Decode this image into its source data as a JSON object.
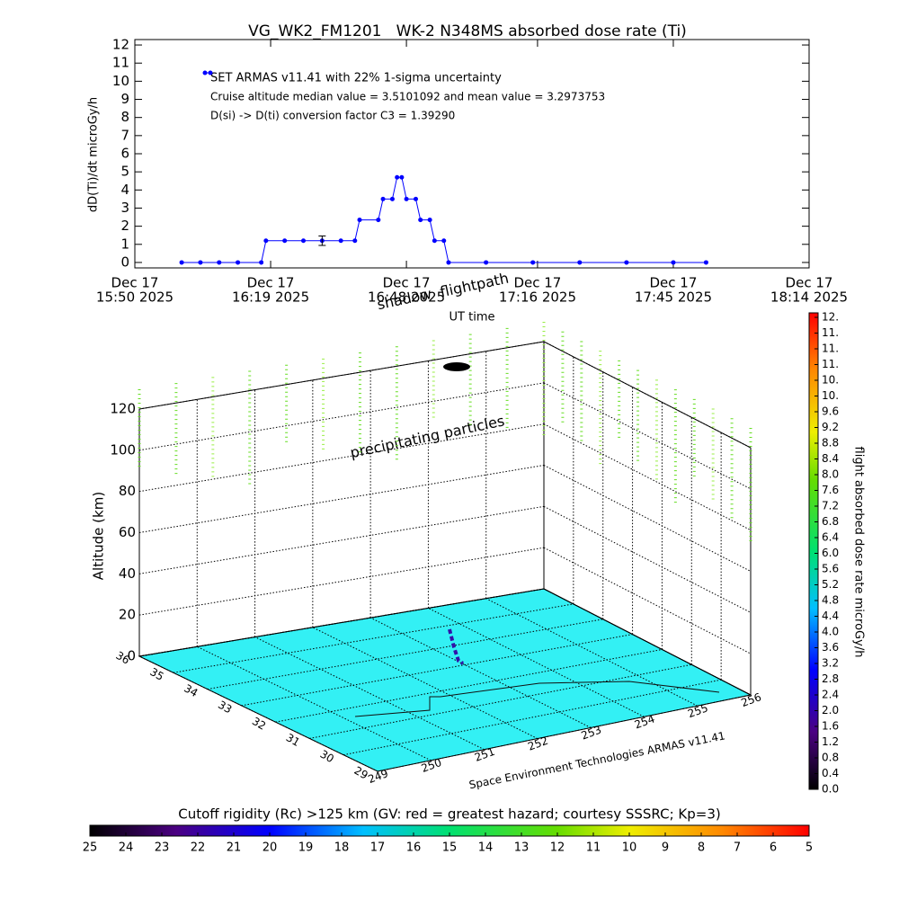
{
  "chart_data": [
    {
      "type": "line",
      "title": "VG_WK2_FM1201   WK-2 N348MS absorbed dose rate (Ti)",
      "ylabel": "dD(Ti)/dt microGy/h",
      "xlabel": "UT time",
      "annotations": [
        "SET ARMAS v11.41 with 22% 1-sigma uncertainty",
        "Cruise altitude median value = 3.5101092 and mean value = 3.2973753",
        "D(si) -> D(ti) conversion factor C3 = 1.39290"
      ],
      "xlim": [
        "15:50",
        "18:14"
      ],
      "xticks": [
        {
          "value": "15:50",
          "label": [
            "Dec 17",
            "15:50 2025"
          ]
        },
        {
          "value": "16:19",
          "label": [
            "Dec 17",
            "16:19 2025"
          ]
        },
        {
          "value": "16:48",
          "label": [
            "Dec 17",
            "16:48 2025"
          ]
        },
        {
          "value": "17:16",
          "label": [
            "Dec 17",
            "17:16 2025"
          ]
        },
        {
          "value": "17:45",
          "label": [
            "Dec 17",
            "17:45 2025"
          ]
        },
        {
          "value": "18:14",
          "label": [
            "Dec 17",
            "18:14 2025"
          ]
        }
      ],
      "ylim": [
        -0.3,
        12.3
      ],
      "yticks": [
        0,
        1,
        2,
        3,
        4,
        5,
        6,
        7,
        8,
        9,
        10,
        11,
        12
      ],
      "x": [
        "16:00",
        "16:04",
        "16:08",
        "16:12",
        "16:17",
        "16:18",
        "16:22",
        "16:26",
        "16:30",
        "16:34",
        "16:37",
        "16:38",
        "16:42",
        "16:43",
        "16:45",
        "16:46",
        "16:47",
        "16:48",
        "16:50",
        "16:51",
        "16:53",
        "16:54",
        "16:56",
        "16:57",
        "17:05",
        "17:15",
        "17:25",
        "17:35",
        "17:45",
        "17:52"
      ],
      "series": [
        {
          "color": "#0000ff",
          "values": [
            0,
            0,
            0,
            0,
            0,
            1.2,
            1.2,
            1.2,
            1.2,
            1.2,
            1.2,
            2.35,
            2.35,
            3.5,
            3.5,
            4.7,
            4.7,
            3.5,
            3.5,
            2.35,
            2.35,
            1.2,
            1.2,
            0,
            0,
            0,
            0,
            0,
            0,
            0
          ]
        }
      ],
      "error_bar": {
        "x": "16:30",
        "value": 1.2,
        "error": 0.26
      }
    },
    {
      "type": "surface3d",
      "labels": [
        "shadow",
        "flightpath",
        "precipitating particles",
        "Space Environment Technologies ARMAS v11.41"
      ],
      "zlabel": "Altitude (km)",
      "zlim": [
        0,
        120
      ],
      "zticks": [
        0,
        20,
        40,
        60,
        80,
        100,
        120
      ],
      "xlim": [
        249,
        256
      ],
      "xticks": [
        249,
        250,
        251,
        252,
        253,
        254,
        255,
        256
      ],
      "ylim": [
        29,
        36
      ],
      "yticks": [
        36,
        35,
        34,
        33,
        32,
        31,
        30,
        29
      ],
      "colorbar": {
        "label": "flight absorbed dose rate microGy/h",
        "lim": [
          0,
          12
        ],
        "ticks": [
          {
            "value": 0,
            "label": "0.0"
          },
          {
            "value": 0.4,
            "label": "0.4"
          },
          {
            "value": 0.8,
            "label": "0.8"
          },
          {
            "value": 1.2,
            "label": "1.2"
          },
          {
            "value": 1.6,
            "label": "1.6"
          },
          {
            "value": 2,
            "label": "2.0"
          },
          {
            "value": 2.4,
            "label": "2.4"
          },
          {
            "value": 2.8,
            "label": "2.8"
          },
          {
            "value": 3.2,
            "label": "3.2"
          },
          {
            "value": 3.6,
            "label": "3.6"
          },
          {
            "value": 4,
            "label": "4.0"
          },
          {
            "value": 4.4,
            "label": "4.4"
          },
          {
            "value": 4.8,
            "label": "4.8"
          },
          {
            "value": 5.2,
            "label": "5.2"
          },
          {
            "value": 5.6,
            "label": "5.6"
          },
          {
            "value": 6,
            "label": "6.0"
          },
          {
            "value": 6.4,
            "label": "6.4"
          },
          {
            "value": 6.8,
            "label": "6.8"
          },
          {
            "value": 7.2,
            "label": "7.2"
          },
          {
            "value": 7.6,
            "label": "7.6"
          },
          {
            "value": 8,
            "label": "8.0"
          },
          {
            "value": 8.4,
            "label": "8.4"
          },
          {
            "value": 8.8,
            "label": "8.8"
          },
          {
            "value": 9.2,
            "label": "9.2"
          },
          {
            "value": 9.6,
            "label": "9.6"
          },
          {
            "value": 10,
            "label": "10."
          },
          {
            "value": 10.4,
            "label": "10."
          },
          {
            "value": 10.8,
            "label": "11."
          },
          {
            "value": 11.2,
            "label": "11."
          },
          {
            "value": 11.6,
            "label": "11."
          },
          {
            "value": 12,
            "label": "12."
          }
        ]
      },
      "rigidity_bar": {
        "label": "Cutoff rigidity (Rc) >125 km (GV: red = greatest hazard; courtesy SSSRC; Kp=3)",
        "lim": [
          25,
          5
        ],
        "ticks": [
          25,
          24,
          23,
          22,
          21,
          20,
          19,
          18,
          17,
          16,
          15,
          14,
          13,
          12,
          11,
          10,
          9,
          8,
          7,
          6,
          5
        ]
      }
    }
  ]
}
